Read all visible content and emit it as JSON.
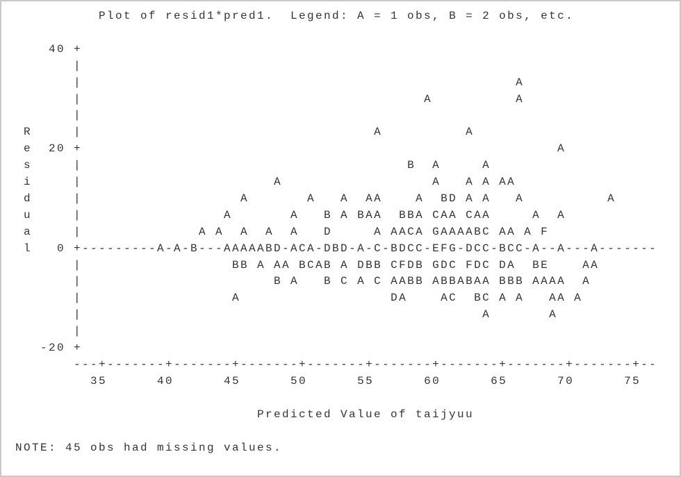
{
  "title": "Plot of resid1*pred1.  Legend: A = 1 obs, B = 2 obs, etc.",
  "plot_lines": [
    "    40 +",
    "       |",
    "       |                                                    A",
    "       |                                         A          A",
    "       |",
    " R     |                                   A          A",
    " e  20 +                                                         A",
    " s     |                                       B  A     A",
    " i     |                       A                  A   A A AA",
    " d     |                   A       A   A  AA    A  BD A A   A          A",
    " u     |                 A       A   B A BAA  BBA CAA CAA     A  A",
    " a     |              A A  A  A  A   D     A AACA GAAAABC AA A F",
    " l   0 +---------A-A-B---AAAAABD-ACA-DBD-A-C-BDCC-EFG-DCC-BCC-A--A---A-------",
    "       |                  BB A AA BCAB A DBB CFDB GDC FDC DA  BE    AA",
    "       |                       B A   B C A C AABB ABBABAA BBB AAAA  A",
    "       |                  A                  DA    AC  BC A A   AA A",
    "       |                                                A       A",
    "       |",
    "   -20 +",
    "       ---+-------+-------+-------+-------+-------+-------+-------+-------+--",
    "         35      40      45      50      55      60      65      70      75"
  ],
  "x_axis_label": "Predicted Value of taijyuu",
  "note": "NOTE: 45 obs had missing values."
}
